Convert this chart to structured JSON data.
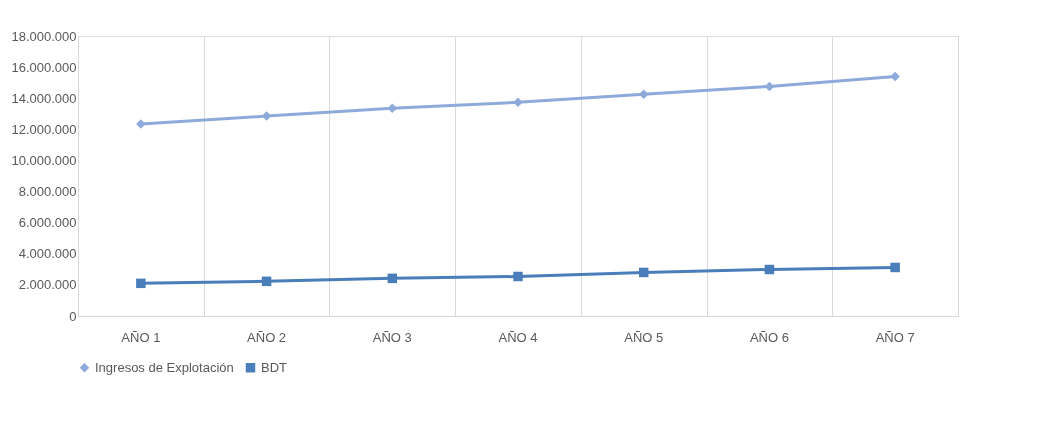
{
  "chart_data": {
    "type": "line",
    "categories": [
      "AÑO 1",
      "AÑO 2",
      "AÑO 3",
      "AÑO 4",
      "AÑO 5",
      "AÑO 6",
      "AÑO 7"
    ],
    "series": [
      {
        "name": "Ingresos de Explotación",
        "color": "#8eaadb",
        "marker": "diamond",
        "values": [
          12340000,
          12850000,
          13360000,
          13740000,
          14250000,
          14760000,
          15390000
        ]
      },
      {
        "name": "BDT",
        "color": "#4a7ebb",
        "marker": "square",
        "values": [
          2100000,
          2230000,
          2420000,
          2540000,
          2800000,
          2990000,
          3120000
        ]
      }
    ],
    "ylim": [
      0,
      18000000
    ],
    "yticks": [
      {
        "value": 0,
        "label": "0"
      },
      {
        "value": 2000000,
        "label": "2.000.000"
      },
      {
        "value": 4000000,
        "label": "4.000.000"
      },
      {
        "value": 6000000,
        "label": "6.000.000"
      },
      {
        "value": 8000000,
        "label": "8.000.000"
      },
      {
        "value": 10000000,
        "label": "10.000.000"
      },
      {
        "value": 12000000,
        "label": "12.000.000"
      },
      {
        "value": 14000000,
        "label": "14.000.000"
      },
      {
        "value": 16000000,
        "label": "16.000.000"
      },
      {
        "value": 18000000,
        "label": "18.000.000"
      }
    ],
    "grid": "x",
    "legend": "bottom"
  }
}
